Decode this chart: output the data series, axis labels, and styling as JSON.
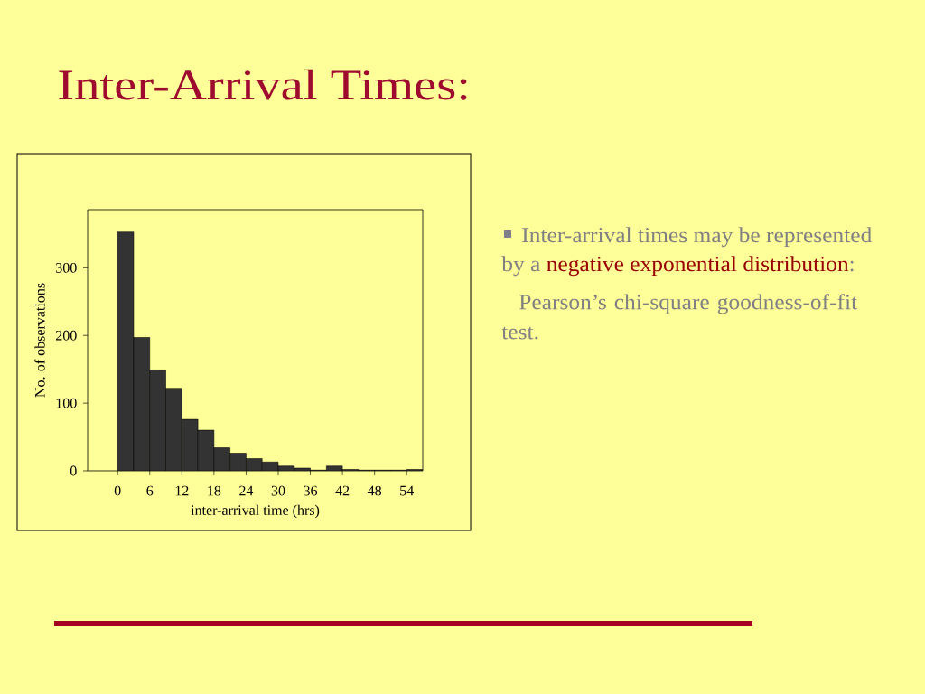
{
  "chart_data": {
    "type": "histogram",
    "title": "Inter-Arrival Times:",
    "xlabel": "inter-arrival time (hrs)",
    "ylabel": "No. of observations",
    "bins": [
      0,
      3,
      6,
      9,
      12,
      15,
      18,
      21,
      24,
      27,
      30,
      33,
      36,
      39,
      42,
      45,
      48,
      51,
      54,
      57
    ],
    "values": [
      353,
      197,
      149,
      122,
      76,
      60,
      34,
      26,
      18,
      13,
      7,
      4,
      1,
      7,
      2,
      1,
      1,
      1,
      2
    ],
    "color": "#333333",
    "xlim": [
      -5.6,
      57
    ],
    "ylim": [
      0,
      386
    ],
    "xticks": [
      0,
      6,
      12,
      18,
      24,
      30,
      36,
      42,
      48,
      54
    ],
    "yticks": [
      0,
      100,
      200,
      300
    ],
    "annotations": [
      "Inter-arrival times may be represented",
      "by a",
      "negative exponential distribution",
      ":",
      "Pearson’s chi-square goodness-of-fit test."
    ]
  }
}
